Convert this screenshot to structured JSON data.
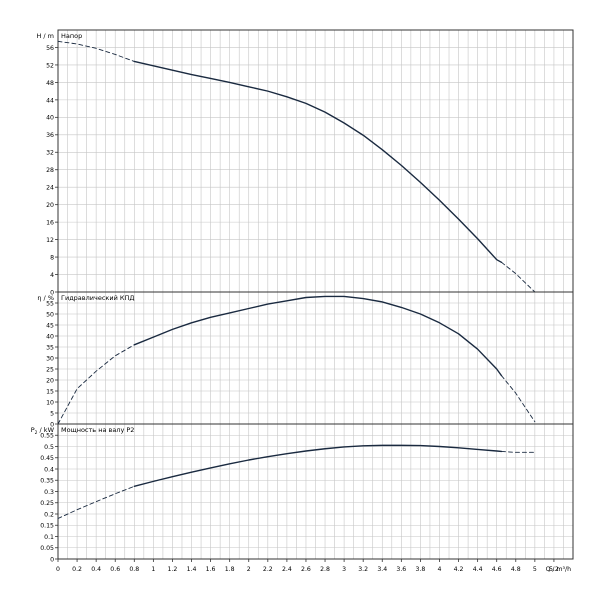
{
  "chart_data": [
    {
      "type": "line",
      "title": "Напор",
      "ylabel": "H / m",
      "xlim": [
        0,
        5.4
      ],
      "ylim": [
        0,
        60
      ],
      "yticks": [
        0,
        4,
        8,
        12,
        16,
        20,
        24,
        28,
        32,
        36,
        40,
        44,
        48,
        52,
        56
      ],
      "grid": true,
      "series": [
        {
          "style": "solid",
          "x": [
            0.8,
            1.0,
            1.2,
            1.4,
            1.6,
            1.8,
            2.0,
            2.2,
            2.4,
            2.6,
            2.8,
            3.0,
            3.2,
            3.4,
            3.6,
            3.8,
            4.0,
            4.2,
            4.4,
            4.6,
            4.65
          ],
          "y": [
            52.8,
            51.8,
            50.8,
            49.8,
            48.9,
            48.0,
            47.0,
            46.0,
            44.7,
            43.2,
            41.2,
            38.7,
            35.9,
            32.6,
            29.0,
            25.1,
            21.0,
            16.7,
            12.2,
            7.4,
            6.8
          ]
        },
        {
          "style": "dashed",
          "x": [
            0.0,
            0.2,
            0.4,
            0.6,
            0.8
          ],
          "y": [
            57.4,
            56.8,
            55.8,
            54.4,
            52.8
          ]
        },
        {
          "style": "dashed",
          "x": [
            4.65,
            4.8,
            5.0
          ],
          "y": [
            6.8,
            4.2,
            0.0
          ]
        }
      ]
    },
    {
      "type": "line",
      "title": "Гидравлический КПД",
      "ylabel": "η / %",
      "xlim": [
        0,
        5.4
      ],
      "ylim": [
        0,
        60
      ],
      "yticks": [
        0,
        5,
        10,
        15,
        20,
        25,
        30,
        35,
        40,
        45,
        50,
        55
      ],
      "grid": true,
      "series": [
        {
          "style": "solid",
          "x": [
            0.8,
            1.0,
            1.2,
            1.4,
            1.6,
            1.8,
            2.0,
            2.2,
            2.4,
            2.6,
            2.8,
            3.0,
            3.2,
            3.4,
            3.6,
            3.8,
            4.0,
            4.2,
            4.4,
            4.6,
            4.65
          ],
          "y": [
            36.0,
            39.5,
            43.0,
            46.0,
            48.5,
            50.5,
            52.5,
            54.5,
            56.0,
            57.5,
            58.0,
            58.0,
            57.0,
            55.5,
            53.0,
            50.0,
            46.0,
            41.0,
            34.0,
            25.0,
            22.0
          ]
        },
        {
          "style": "dashed",
          "x": [
            0.0,
            0.2,
            0.4,
            0.6,
            0.8
          ],
          "y": [
            0.0,
            16.0,
            24.0,
            31.0,
            36.0
          ]
        },
        {
          "style": "dashed",
          "x": [
            4.65,
            4.8,
            5.0
          ],
          "y": [
            22.0,
            14.0,
            1.0
          ]
        }
      ]
    },
    {
      "type": "line",
      "title": "Мощность на валу P2",
      "ylabel_main": "P",
      "ylabel_sub": "2",
      "ylabel_unit": " / kW",
      "xlabel": "Q / m³/h",
      "xlim": [
        0,
        5.4
      ],
      "ylim": [
        0,
        0.6
      ],
      "yticks": [
        0,
        0.05,
        0.1,
        0.15,
        0.2,
        0.25,
        0.3,
        0.35,
        0.4,
        0.45,
        0.5,
        0.55
      ],
      "ytick_labels": [
        "0",
        "0.05",
        "0.1",
        "0.15",
        "0.2",
        "0.25",
        "0.3",
        "0.35",
        "0.4",
        "0.45",
        "0.5",
        "0.55"
      ],
      "xticks": [
        0,
        0.2,
        0.4,
        0.6,
        0.8,
        1,
        1.2,
        1.4,
        1.6,
        1.8,
        2,
        2.2,
        2.4,
        2.6,
        2.8,
        3,
        3.2,
        3.4,
        3.6,
        3.8,
        4,
        4.2,
        4.4,
        4.6,
        4.8,
        5,
        5.2
      ],
      "xtick_labels": [
        "0",
        "0.2",
        "0.4",
        "0.6",
        "0.8",
        "1",
        "1.2",
        "1.4",
        "1.6",
        "1.8",
        "2",
        "2.2",
        "2.4",
        "2.6",
        "2.8",
        "3",
        "3.2",
        "3.4",
        "3.6",
        "3.8",
        "4",
        "4.2",
        "4.4",
        "4.6",
        "4.8",
        "5",
        "5.2"
      ],
      "grid": true,
      "series": [
        {
          "style": "solid",
          "x": [
            0.8,
            1.0,
            1.2,
            1.4,
            1.6,
            1.8,
            2.0,
            2.2,
            2.4,
            2.6,
            2.8,
            3.0,
            3.2,
            3.4,
            3.6,
            3.8,
            4.0,
            4.2,
            4.4,
            4.6,
            4.65
          ],
          "y": [
            0.323,
            0.345,
            0.366,
            0.386,
            0.405,
            0.423,
            0.44,
            0.455,
            0.468,
            0.48,
            0.49,
            0.498,
            0.503,
            0.505,
            0.505,
            0.504,
            0.5,
            0.494,
            0.487,
            0.48,
            0.478
          ]
        },
        {
          "style": "dashed",
          "x": [
            0.0,
            0.2,
            0.4,
            0.6,
            0.8
          ],
          "y": [
            0.18,
            0.219,
            0.255,
            0.29,
            0.323
          ]
        },
        {
          "style": "dashed",
          "x": [
            4.65,
            4.8,
            5.0
          ],
          "y": [
            0.478,
            0.474,
            0.474
          ]
        }
      ]
    }
  ],
  "colors": {
    "curve": "#1a2a40",
    "grid": "#c6c6c6",
    "frame": "#333333",
    "text": "#000000"
  }
}
